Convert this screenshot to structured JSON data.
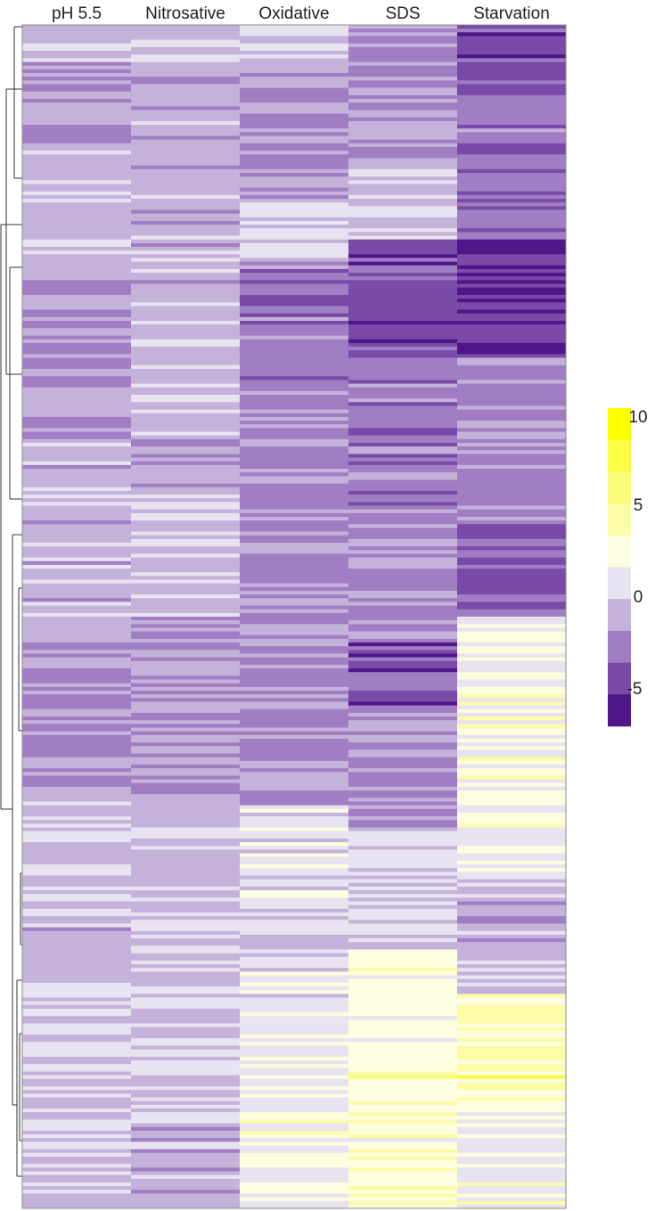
{
  "chart_data": {
    "type": "heatmap",
    "columns": [
      "pH 5.5",
      "Nitrosative",
      "Oxidative",
      "SDS",
      "Starvation"
    ],
    "colorscale": {
      "min": -5,
      "max": 10,
      "tick_labels": [
        "10",
        "5",
        "0",
        "-5"
      ],
      "tick_values": [
        10,
        5,
        0,
        -5
      ],
      "colors": [
        "#fcff00",
        "#fcfc45",
        "#fbfb7a",
        "#fbfba8",
        "#fdfde0",
        "#e8e3f0",
        "#c5b2da",
        "#a17ec4",
        "#7a4aa8",
        "#4f1589"
      ]
    },
    "dendrogram": "left",
    "rows": 320,
    "column_blocks": [
      {
        "column": "pH 5.5",
        "blocks": [
          {
            "from": 0.0,
            "to": 0.03,
            "value": 0.5
          },
          {
            "from": 0.03,
            "to": 0.1,
            "value": -0.4
          },
          {
            "from": 0.1,
            "to": 0.2,
            "value": 0.6
          },
          {
            "from": 0.2,
            "to": 0.35,
            "value": -0.3
          },
          {
            "from": 0.35,
            "to": 0.5,
            "value": 0.4
          },
          {
            "from": 0.5,
            "to": 0.65,
            "value": -0.4
          },
          {
            "from": 0.65,
            "to": 0.8,
            "value": 0.5
          },
          {
            "from": 0.8,
            "to": 0.92,
            "value": 0.9
          },
          {
            "from": 0.92,
            "to": 1.0,
            "value": 0.6
          }
        ]
      },
      {
        "column": "Nitrosative",
        "blocks": [
          {
            "from": 0.0,
            "to": 0.03,
            "value": 0.5
          },
          {
            "from": 0.03,
            "to": 0.08,
            "value": -0.5
          },
          {
            "from": 0.08,
            "to": 0.25,
            "value": 0.5
          },
          {
            "from": 0.25,
            "to": 0.4,
            "value": 0.3
          },
          {
            "from": 0.4,
            "to": 0.5,
            "value": 0.6
          },
          {
            "from": 0.5,
            "to": 0.62,
            "value": -0.3
          },
          {
            "from": 0.62,
            "to": 0.75,
            "value": 0.3
          },
          {
            "from": 0.75,
            "to": 0.9,
            "value": 0.8
          },
          {
            "from": 0.9,
            "to": 1.0,
            "value": 0.5
          }
        ]
      },
      {
        "column": "Oxidative",
        "blocks": [
          {
            "from": 0.0,
            "to": 0.03,
            "value": 0.8
          },
          {
            "from": 0.03,
            "to": 0.15,
            "value": -0.5
          },
          {
            "from": 0.15,
            "to": 0.2,
            "value": 1.2
          },
          {
            "from": 0.2,
            "to": 0.3,
            "value": -1.5
          },
          {
            "from": 0.3,
            "to": 0.45,
            "value": -0.6
          },
          {
            "from": 0.45,
            "to": 0.55,
            "value": -0.8
          },
          {
            "from": 0.55,
            "to": 0.66,
            "value": -0.7
          },
          {
            "from": 0.66,
            "to": 0.8,
            "value": 1.5
          },
          {
            "from": 0.8,
            "to": 0.9,
            "value": 2.0
          },
          {
            "from": 0.9,
            "to": 1.0,
            "value": 2.5
          }
        ]
      },
      {
        "column": "SDS",
        "blocks": [
          {
            "from": 0.0,
            "to": 0.03,
            "value": -0.4
          },
          {
            "from": 0.03,
            "to": 0.12,
            "value": -0.5
          },
          {
            "from": 0.12,
            "to": 0.18,
            "value": 1.0
          },
          {
            "from": 0.18,
            "to": 0.28,
            "value": -2.5
          },
          {
            "from": 0.28,
            "to": 0.42,
            "value": -1.2
          },
          {
            "from": 0.42,
            "to": 0.52,
            "value": -0.7
          },
          {
            "from": 0.52,
            "to": 0.58,
            "value": -2.0
          },
          {
            "from": 0.58,
            "to": 0.68,
            "value": -0.5
          },
          {
            "from": 0.68,
            "to": 0.78,
            "value": 1.5
          },
          {
            "from": 0.78,
            "to": 0.88,
            "value": 2.8
          },
          {
            "from": 0.88,
            "to": 1.0,
            "value": 3.5
          }
        ]
      },
      {
        "column": "Starvation",
        "blocks": [
          {
            "from": 0.0,
            "to": 0.05,
            "value": -2.8
          },
          {
            "from": 0.05,
            "to": 0.18,
            "value": -1.5
          },
          {
            "from": 0.18,
            "to": 0.28,
            "value": -3.5
          },
          {
            "from": 0.28,
            "to": 0.42,
            "value": -0.8
          },
          {
            "from": 0.42,
            "to": 0.5,
            "value": -1.8
          },
          {
            "from": 0.5,
            "to": 0.72,
            "value": 2.5
          },
          {
            "from": 0.72,
            "to": 0.82,
            "value": 0.5
          },
          {
            "from": 0.82,
            "to": 0.92,
            "value": 4.0
          },
          {
            "from": 0.92,
            "to": 1.0,
            "value": 2.5
          }
        ]
      }
    ]
  }
}
